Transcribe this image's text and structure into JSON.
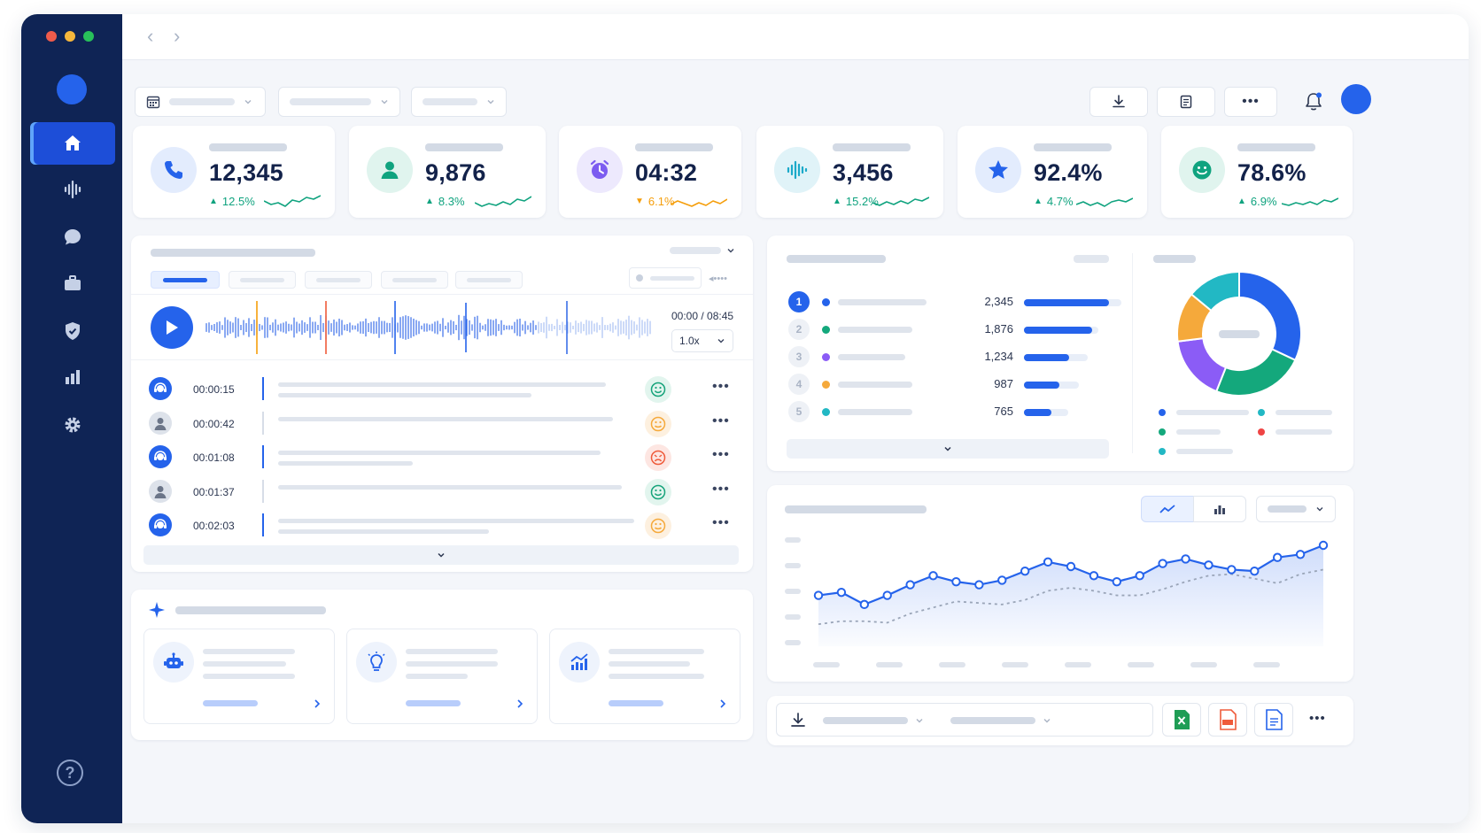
{
  "kpis": [
    {
      "value": "12,345",
      "trend": "12.5%",
      "direction": "up",
      "icon": "phone-icon",
      "color": "#2563eb",
      "bg": "#e3ecfd"
    },
    {
      "value": "9,876",
      "trend": "8.3%",
      "direction": "up",
      "icon": "user-icon",
      "color": "#10a37f",
      "bg": "#e0f4ee"
    },
    {
      "value": "04:32",
      "trend": "6.1%",
      "direction": "down",
      "icon": "clock-icon",
      "color": "#7c5cf0",
      "bg": "#ede9fd"
    },
    {
      "value": "3,456",
      "trend": "15.2%",
      "direction": "up",
      "icon": "audio-wave-icon",
      "color": "#1ba9c9",
      "bg": "#e0f3f8"
    },
    {
      "value": "92.4%",
      "trend": "4.7%",
      "direction": "up",
      "icon": "star-icon",
      "color": "#2563eb",
      "bg": "#e3ecfd"
    },
    {
      "value": "78.6%",
      "trend": "6.9%",
      "direction": "up",
      "icon": "smile-icon",
      "color": "#10a37f",
      "bg": "#e0f4ee"
    }
  ],
  "player": {
    "time": "00:00 / 08:45",
    "speed": "1.0x"
  },
  "transcript": [
    {
      "time": "00:00:15",
      "speaker": "agent",
      "sentiment": "positive"
    },
    {
      "time": "00:00:42",
      "speaker": "customer",
      "sentiment": "neutral"
    },
    {
      "time": "00:01:08",
      "speaker": "agent",
      "sentiment": "negative"
    },
    {
      "time": "00:01:37",
      "speaker": "customer",
      "sentiment": "positive"
    },
    {
      "time": "00:02:03",
      "speaker": "agent",
      "sentiment": "neutral"
    }
  ],
  "ranking": [
    {
      "rank": "1",
      "value": "2,345",
      "color": "#2563eb"
    },
    {
      "rank": "2",
      "value": "1,876",
      "color": "#14a87c"
    },
    {
      "rank": "3",
      "value": "1,234",
      "color": "#8b5cf6"
    },
    {
      "rank": "4",
      "value": "987",
      "color": "#f5a93b"
    },
    {
      "rank": "5",
      "value": "765",
      "color": "#22b8c4"
    }
  ],
  "donut": {
    "slices": [
      {
        "value": 32,
        "color": "#2563eb"
      },
      {
        "value": 24,
        "color": "#14a87c"
      },
      {
        "value": 17,
        "color": "#8b5cf6"
      },
      {
        "value": 13,
        "color": "#f5a93b"
      },
      {
        "value": 14,
        "color": "#22b8c4"
      }
    ],
    "legend_colors": [
      "#2563eb",
      "#22b8c4",
      "#14a87c",
      "#ef4444",
      "#22b8c4"
    ]
  },
  "chart_data": {
    "type": "line",
    "series": [
      {
        "values": [
          3.0,
          3.2,
          2.4,
          3.0,
          3.7,
          4.3,
          3.9,
          3.7,
          4.0,
          4.6,
          5.2,
          4.9,
          4.3,
          3.9,
          4.3,
          5.1,
          5.4,
          5.0,
          4.7,
          4.6,
          5.5,
          5.7,
          6.3
        ]
      },
      {
        "values": [
          1.1,
          1.3,
          1.3,
          1.2,
          1.8,
          2.2,
          2.6,
          2.5,
          2.4,
          2.7,
          3.3,
          3.5,
          3.3,
          3.0,
          3.0,
          3.4,
          3.9,
          4.3,
          4.4,
          4.1,
          3.8,
          4.4,
          4.7
        ]
      }
    ],
    "ylim": [
      0,
      7
    ]
  },
  "colors": {
    "accent": "#2563eb",
    "sidebar": "#0f2455",
    "up": "#10a37f",
    "down": "#f59e0b"
  }
}
